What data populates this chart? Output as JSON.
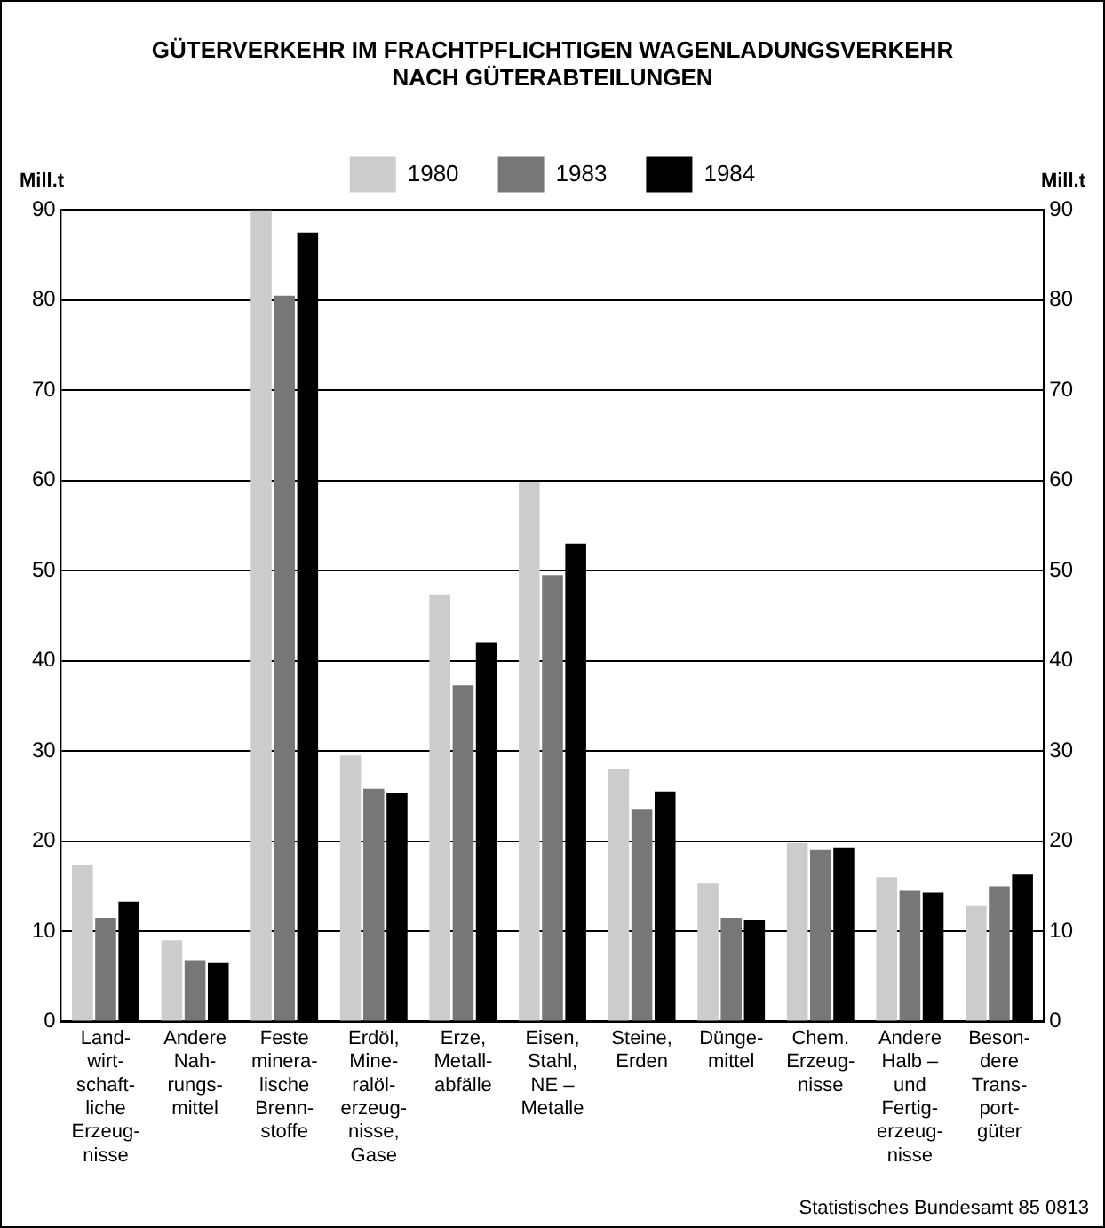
{
  "chart_data": {
    "type": "bar",
    "title": "GÜTERVERKEHR IM FRACHTPFLICHTIGEN WAGENLADUNGSVERKEHR\nNACH GÜTERABTEILUNGEN",
    "ylabel": "Mill.t",
    "y2label": "Mill.t",
    "categories": [
      "Land-\nwirt-\nschaft-\nliche\nErzeug-\nnisse",
      "Andere\nNah-\nrungs-\nmittel",
      "Feste\nminera-\nlische\nBrenn-\nstoffe",
      "Erdöl,\nMine-\nralöl-\nerzeug-\nnisse,\nGase",
      "Erze,\nMetall-\nabfälle",
      "Eisen,\nStahl,\nNE –\nMetalle",
      "Steine,\nErden",
      "Dünge-\nmittel",
      "Chem.\nErzeug-\nnisse",
      "Andere\nHalb –\nund\nFertig-\nerzeug-\nnisse",
      "Beson-\ndere\nTrans-\nport-\ngüter"
    ],
    "series": [
      {
        "name": "1980",
        "color": "#cccccc",
        "values": [
          17.3,
          9,
          90,
          29.5,
          47.3,
          59.8,
          28,
          15.3,
          19.8,
          16,
          12.8
        ]
      },
      {
        "name": "1983",
        "color": "#777777",
        "values": [
          11.5,
          6.8,
          80.5,
          25.8,
          37.3,
          49.5,
          23.5,
          11.5,
          19,
          14.5,
          15
        ]
      },
      {
        "name": "1984",
        "color": "#000000",
        "values": [
          13.3,
          6.5,
          87.5,
          25.3,
          42,
          53,
          25.5,
          11.3,
          19.3,
          14.3,
          16.3
        ]
      }
    ],
    "ylim": [
      0,
      90
    ],
    "yticks": [
      0,
      10,
      20,
      30,
      40,
      50,
      60,
      70,
      80,
      90
    ],
    "y2lim": [
      0,
      90
    ],
    "y2ticks": [
      0,
      10,
      20,
      30,
      40,
      50,
      60,
      70,
      80,
      90
    ],
    "grid": "y",
    "legend": "top",
    "annotations": [
      "Statistisches Bundesamt 85 0813"
    ]
  }
}
